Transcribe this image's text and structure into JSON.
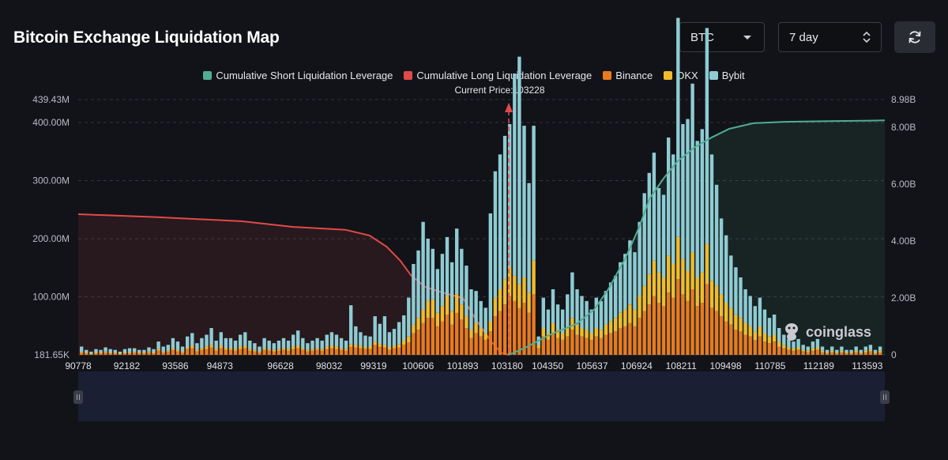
{
  "header": {
    "title": "Bitcoin Exchange Liquidation Map",
    "coin_select": "BTC",
    "range_select": "7 day"
  },
  "icons": {
    "refresh": "refresh-icon",
    "coin_caret": "caret-down-icon",
    "range_spinner": "up-down-icon",
    "watermark_logo": "coinglass-logo-icon"
  },
  "watermark": {
    "text": "coinglass"
  },
  "colors": {
    "short_cum": "#4fae94",
    "long_cum": "#e14a4a",
    "binance": "#e87b1f",
    "okx": "#f0bc2c",
    "bybit": "#8fcbd3",
    "background": "#121318"
  },
  "chart_data": {
    "type": "bar",
    "title": "",
    "annotation": "Current Price:103228",
    "current_price": 103228,
    "legend": [
      {
        "name": "Cumulative Short Liquidation Leverage",
        "color": "#4fae94"
      },
      {
        "name": "Cumulative Long Liquidation Leverage",
        "color": "#e14a4a"
      },
      {
        "name": "Binance",
        "color": "#e87b1f"
      },
      {
        "name": "OKX",
        "color": "#f0bc2c"
      },
      {
        "name": "Bybit",
        "color": "#8fcbd3"
      }
    ],
    "x_range": [
      90778,
      114100
    ],
    "x_tick_labels": [
      "90778",
      "92182",
      "93586",
      "94873",
      "96628",
      "98032",
      "99319",
      "100606",
      "101893",
      "103180",
      "104350",
      "105637",
      "106924",
      "108211",
      "109498",
      "110785",
      "112189",
      "113593"
    ],
    "x_tick_values": [
      90778,
      92182,
      93586,
      94873,
      96628,
      98032,
      99319,
      100606,
      101893,
      103180,
      104350,
      105637,
      106924,
      108211,
      109498,
      110785,
      112189,
      113593
    ],
    "y_left": {
      "range": [
        181650,
        439430000
      ],
      "tick_labels": [
        "181.65K",
        "100.00M",
        "200.00M",
        "300.00M",
        "400.00M",
        "439.43M"
      ],
      "tick_values": [
        181650,
        100000000,
        200000000,
        300000000,
        400000000,
        439430000
      ]
    },
    "y_right": {
      "range": [
        0,
        8980000000
      ],
      "tick_labels": [
        "0",
        "2.00B",
        "4.00B",
        "6.00B",
        "8.00B",
        "8.98B"
      ],
      "tick_values": [
        0,
        2000000000,
        4000000000,
        6000000000,
        8000000000,
        8980000000
      ]
    },
    "grid": true,
    "cumulative_long": {
      "name": "Cumulative Long Liquidation Leverage",
      "x": [
        90778,
        93000,
        95500,
        97000,
        98500,
        99200,
        99700,
        100100,
        100400,
        100800,
        101300,
        101900,
        102300,
        102700,
        103000,
        103228
      ],
      "y": [
        4950000000,
        4850000000,
        4700000000,
        4500000000,
        4400000000,
        4200000000,
        3800000000,
        3300000000,
        2800000000,
        2400000000,
        2200000000,
        2000000000,
        1200000000,
        500000000,
        80000000,
        0
      ]
    },
    "cumulative_short": {
      "name": "Cumulative Short Liquidation Leverage",
      "x": [
        103228,
        103700,
        104400,
        105200,
        105700,
        106100,
        106600,
        107000,
        107300,
        107700,
        108100,
        108600,
        109100,
        109600,
        110300,
        111200,
        112500,
        113700,
        114100
      ],
      "y": [
        0,
        250000000,
        700000000,
        1100000000,
        1600000000,
        2300000000,
        3400000000,
        4500000000,
        5500000000,
        6200000000,
        6800000000,
        7300000000,
        7650000000,
        7950000000,
        8150000000,
        8200000000,
        8220000000,
        8240000000,
        8250000000
      ]
    },
    "exchange_bars_note": "Stacked per price bucket: Binance (bottom), OKX (middle), Bybit (top); values in USD.",
    "binance": [
      3,
      2,
      1,
      2,
      2,
      3,
      2,
      2,
      1,
      2,
      2,
      3,
      2,
      2,
      3,
      2,
      5,
      3,
      4,
      6,
      4,
      3,
      7,
      8,
      4,
      6,
      7,
      9,
      5,
      8,
      6,
      6,
      5,
      7,
      8,
      5,
      4,
      3,
      6,
      5,
      4,
      5,
      6,
      5,
      7,
      8,
      6,
      4,
      5,
      6,
      5,
      7,
      8,
      7,
      6,
      5,
      10,
      9,
      8,
      7,
      7,
      12,
      10,
      9,
      6,
      8,
      9,
      12,
      15,
      26,
      30,
      38,
      44,
      44,
      34,
      40,
      48,
      36,
      50,
      42,
      32,
      20,
      26,
      22,
      18,
      28,
      46,
      52,
      60,
      70,
      64,
      56,
      62,
      50,
      72,
      8,
      22,
      18,
      26,
      20,
      18,
      22,
      30,
      24,
      22,
      20,
      18,
      22,
      20,
      24,
      26,
      28,
      32,
      34,
      38,
      34,
      44,
      52,
      60,
      70,
      62,
      58,
      74,
      68,
      90,
      72,
      64,
      78,
      58,
      62,
      84,
      56,
      52,
      46,
      40,
      36,
      30,
      28,
      24,
      22,
      18,
      22,
      16,
      14,
      16,
      10,
      8,
      6,
      5,
      6,
      4,
      3,
      5,
      6,
      3,
      2,
      3,
      2,
      3,
      2,
      2,
      3,
      2,
      3,
      4,
      2,
      3
    ],
    "okx": [
      1,
      1,
      1,
      1,
      1,
      1,
      1,
      1,
      1,
      1,
      1,
      1,
      1,
      1,
      1,
      1,
      2,
      1,
      1,
      2,
      2,
      1,
      2,
      3,
      2,
      2,
      3,
      3,
      2,
      3,
      2,
      2,
      2,
      3,
      3,
      2,
      2,
      1,
      2,
      2,
      2,
      2,
      2,
      2,
      3,
      3,
      2,
      2,
      2,
      2,
      2,
      3,
      3,
      3,
      2,
      2,
      3,
      3,
      3,
      2,
      3,
      4,
      3,
      3,
      3,
      3,
      4,
      5,
      7,
      10,
      14,
      16,
      20,
      22,
      16,
      18,
      22,
      16,
      22,
      18,
      14,
      10,
      12,
      10,
      8,
      12,
      22,
      26,
      30,
      34,
      30,
      28,
      30,
      24,
      40,
      4,
      10,
      8,
      12,
      10,
      8,
      10,
      14,
      12,
      10,
      10,
      8,
      10,
      10,
      12,
      14,
      16,
      18,
      20,
      22,
      20,
      26,
      30,
      36,
      42,
      36,
      34,
      44,
      40,
      50,
      42,
      36,
      44,
      34,
      36,
      48,
      32,
      30,
      26,
      22,
      20,
      18,
      16,
      14,
      12,
      10,
      12,
      10,
      8,
      8,
      6,
      4,
      3,
      3,
      3,
      2,
      2,
      3,
      3,
      2,
      1,
      2,
      1,
      2,
      1,
      1,
      2,
      1,
      2,
      2,
      1,
      2
    ],
    "bybit": [
      6,
      3,
      2,
      4,
      3,
      5,
      4,
      3,
      2,
      4,
      5,
      4,
      3,
      3,
      5,
      4,
      9,
      6,
      7,
      12,
      10,
      6,
      13,
      15,
      8,
      12,
      14,
      20,
      10,
      16,
      12,
      12,
      10,
      14,
      16,
      10,
      8,
      6,
      12,
      10,
      8,
      10,
      12,
      10,
      14,
      18,
      12,
      8,
      10,
      12,
      10,
      14,
      16,
      14,
      12,
      10,
      46,
      22,
      16,
      14,
      12,
      30,
      24,
      34,
      18,
      20,
      26,
      30,
      46,
      72,
      80,
      104,
      74,
      60,
      52,
      62,
      70,
      58,
      78,
      66,
      60,
      48,
      38,
      32,
      30,
      128,
      150,
      160,
      170,
      170,
      240,
      270,
      180,
      130,
      160,
      10,
      36,
      28,
      40,
      30,
      28,
      40,
      54,
      42,
      38,
      34,
      28,
      36,
      34,
      40,
      46,
      50,
      60,
      66,
      76,
      68,
      88,
      110,
      120,
      128,
      100,
      98,
      140,
      130,
      260,
      160,
      180,
      200,
      162,
      170,
      256,
      150,
      120,
      90,
      80,
      62,
      56,
      48,
      40,
      36,
      30,
      34,
      28,
      22,
      24,
      16,
      12,
      10,
      8,
      10,
      6,
      5,
      8,
      10,
      5,
      3,
      5,
      3,
      5,
      3,
      3,
      5,
      3,
      5,
      6,
      3,
      5
    ]
  }
}
